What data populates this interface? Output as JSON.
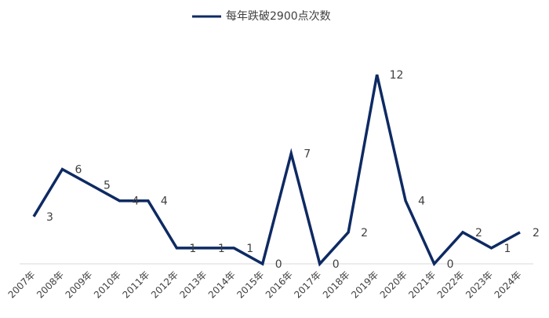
{
  "chart_data": {
    "type": "line",
    "categories": [
      "2007年",
      "2008年",
      "2009年",
      "2010年",
      "2011年",
      "2012年",
      "2013年",
      "2014年",
      "2015年",
      "2016年",
      "2017年",
      "2018年",
      "2019年",
      "2020年",
      "2021年",
      "2022年",
      "2023年",
      "2024年"
    ],
    "series": [
      {
        "name": "每年跌破2900点次数",
        "color": "#0e2a63",
        "values": [
          3,
          6,
          5,
          4,
          4,
          1,
          1,
          1,
          0,
          7,
          0,
          2,
          12,
          4,
          0,
          2,
          1,
          2
        ]
      }
    ],
    "ylim": [
      0,
      14
    ]
  }
}
